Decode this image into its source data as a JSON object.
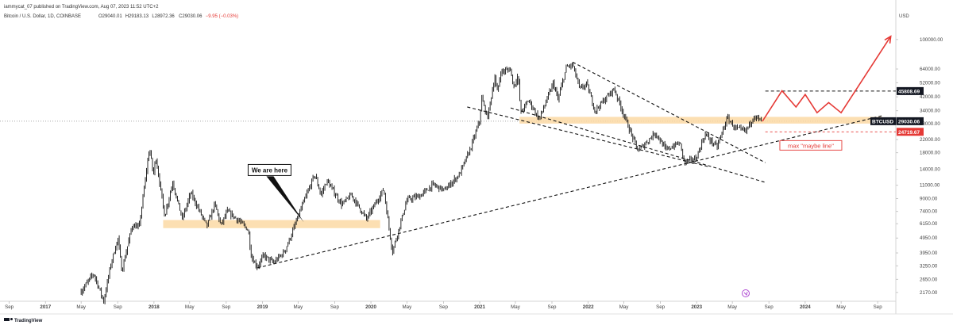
{
  "header": {
    "publish_line": "iammycat_07 published on TradingView.com, Aug 07, 2023 11:52 UTC+2",
    "symbol_line": "Bitcoin / U.S. Dollar, 1D, COINBASE",
    "ohlc": {
      "open_label": "O",
      "open": "29040.01",
      "high_label": "H",
      "high": "29183.13",
      "low_label": "L",
      "low": "28972.36",
      "close_label": "C",
      "close": "29030.06",
      "change": "−9.95 (−0.03%)"
    }
  },
  "footer": {
    "brand": "TradingView"
  },
  "colors": {
    "candle": "#111111",
    "zone": "#fbd9a4",
    "projection": "#e53935",
    "price_label_bg": "#131722",
    "support_label_bg": "#e53935",
    "axis_text": "#444444"
  },
  "chart_data": {
    "type": "candlestick-annotated",
    "currency": "USD",
    "scale": "log",
    "y_ticks": [
      100000,
      64000,
      52000,
      42000,
      34000,
      28000,
      22000,
      18000,
      14000,
      11000,
      9000,
      7400,
      6150,
      4950,
      3950,
      3250,
      2650,
      2170
    ],
    "y_tick_labels": [
      "100000.00",
      "64000.00",
      "52000.00",
      "42000.00",
      "34000.00",
      "28000.00",
      "22000.00",
      "18000.00",
      "14000.00",
      "11000.00",
      "9000.00",
      "7400.00",
      "6150.00",
      "4950.00",
      "3950.00",
      "3250.00",
      "2650.00",
      "2170.00"
    ],
    "ylim": [
      1900,
      130000
    ],
    "x_ticks": [
      {
        "date": "2016-09-01",
        "label": "Sep",
        "major": false
      },
      {
        "date": "2017-01-01",
        "label": "2017",
        "major": true
      },
      {
        "date": "2017-05-01",
        "label": "May",
        "major": false
      },
      {
        "date": "2017-09-01",
        "label": "Sep",
        "major": false
      },
      {
        "date": "2018-01-01",
        "label": "2018",
        "major": true
      },
      {
        "date": "2018-05-01",
        "label": "May",
        "major": false
      },
      {
        "date": "2018-09-01",
        "label": "Sep",
        "major": false
      },
      {
        "date": "2019-01-01",
        "label": "2019",
        "major": true
      },
      {
        "date": "2019-05-01",
        "label": "May",
        "major": false
      },
      {
        "date": "2019-09-01",
        "label": "Sep",
        "major": false
      },
      {
        "date": "2020-01-01",
        "label": "2020",
        "major": true
      },
      {
        "date": "2020-05-01",
        "label": "May",
        "major": false
      },
      {
        "date": "2020-09-01",
        "label": "Sep",
        "major": false
      },
      {
        "date": "2021-01-01",
        "label": "2021",
        "major": true
      },
      {
        "date": "2021-05-01",
        "label": "May",
        "major": false
      },
      {
        "date": "2021-09-01",
        "label": "Sep",
        "major": false
      },
      {
        "date": "2022-01-01",
        "label": "2022",
        "major": true
      },
      {
        "date": "2022-05-01",
        "label": "May",
        "major": false
      },
      {
        "date": "2022-09-01",
        "label": "Sep",
        "major": false
      },
      {
        "date": "2023-01-01",
        "label": "2023",
        "major": true
      },
      {
        "date": "2023-05-01",
        "label": "May",
        "major": false
      },
      {
        "date": "2023-09-01",
        "label": "Sep",
        "major": false
      },
      {
        "date": "2024-01-01",
        "label": "2024",
        "major": true
      },
      {
        "date": "2024-05-01",
        "label": "May",
        "major": false
      },
      {
        "date": "2024-09-01",
        "label": "Sep",
        "major": false
      }
    ],
    "xlim": [
      "2016-08-01",
      "2024-11-01"
    ],
    "price_path": [
      [
        "2017-05-01",
        2200
      ],
      [
        "2017-06-12",
        2900
      ],
      [
        "2017-07-16",
        1900
      ],
      [
        "2017-08-10",
        3400
      ],
      [
        "2017-09-02",
        4900
      ],
      [
        "2017-09-15",
        3000
      ],
      [
        "2017-10-20",
        6000
      ],
      [
        "2017-11-12",
        5800
      ],
      [
        "2017-12-17",
        19500
      ],
      [
        "2017-12-30",
        12800
      ],
      [
        "2018-01-07",
        17000
      ],
      [
        "2018-02-06",
        6900
      ],
      [
        "2018-03-05",
        11500
      ],
      [
        "2018-04-06",
        6600
      ],
      [
        "2018-05-05",
        9800
      ],
      [
        "2018-06-28",
        5900
      ],
      [
        "2018-07-25",
        8300
      ],
      [
        "2018-08-14",
        6000
      ],
      [
        "2018-09-05",
        7400
      ],
      [
        "2018-10-15",
        6400
      ],
      [
        "2018-11-14",
        5600
      ],
      [
        "2018-11-25",
        3700
      ],
      [
        "2018-12-15",
        3200
      ],
      [
        "2019-01-05",
        3800
      ],
      [
        "2019-02-07",
        3400
      ],
      [
        "2019-03-15",
        4000
      ],
      [
        "2019-04-05",
        5000
      ],
      [
        "2019-05-14",
        8000
      ],
      [
        "2019-06-26",
        13000
      ],
      [
        "2019-07-17",
        9500
      ],
      [
        "2019-08-06",
        11800
      ],
      [
        "2019-09-25",
        8200
      ],
      [
        "2019-10-27",
        9500
      ],
      [
        "2019-12-17",
        6600
      ],
      [
        "2020-02-13",
        10400
      ],
      [
        "2020-03-13",
        4000
      ],
      [
        "2020-05-01",
        8800
      ],
      [
        "2020-06-15",
        9400
      ],
      [
        "2020-07-28",
        11100
      ],
      [
        "2020-09-05",
        10200
      ],
      [
        "2020-10-25",
        13000
      ],
      [
        "2020-12-01",
        19200
      ],
      [
        "2020-12-31",
        29000
      ],
      [
        "2021-01-08",
        41000
      ],
      [
        "2021-01-27",
        30500
      ],
      [
        "2021-02-21",
        57000
      ],
      [
        "2021-02-28",
        44000
      ],
      [
        "2021-03-13",
        61000
      ],
      [
        "2021-04-14",
        64000
      ],
      [
        "2021-04-25",
        49000
      ],
      [
        "2021-05-10",
        58000
      ],
      [
        "2021-05-19",
        33000
      ],
      [
        "2021-06-15",
        40000
      ],
      [
        "2021-07-20",
        29800
      ],
      [
        "2021-09-06",
        52000
      ],
      [
        "2021-09-21",
        40000
      ],
      [
        "2021-10-20",
        66000
      ],
      [
        "2021-11-10",
        68000
      ],
      [
        "2021-12-04",
        47000
      ],
      [
        "2021-12-27",
        51000
      ],
      [
        "2022-01-24",
        34000
      ],
      [
        "2022-03-29",
        47500
      ],
      [
        "2022-05-12",
        28000
      ],
      [
        "2022-06-18",
        18500
      ],
      [
        "2022-08-15",
        24400
      ],
      [
        "2022-09-20",
        18800
      ],
      [
        "2022-11-05",
        21000
      ],
      [
        "2022-11-21",
        15500
      ],
      [
        "2022-12-30",
        16500
      ],
      [
        "2023-01-29",
        23800
      ],
      [
        "2023-03-10",
        19600
      ],
      [
        "2023-04-14",
        30500
      ],
      [
        "2023-05-12",
        26000
      ],
      [
        "2023-06-15",
        25000
      ],
      [
        "2023-07-13",
        31500
      ],
      [
        "2023-08-07",
        29030
      ]
    ],
    "last_price": 29030.06,
    "price_labels": [
      {
        "value": 45808.69,
        "text": "45808.69",
        "style": "resistance"
      },
      {
        "value": 29030.06,
        "text": "29030.06",
        "prefix": "BTCUSD",
        "style": "last"
      },
      {
        "value": 24719.67,
        "text": "24719.67",
        "style": "support"
      }
    ],
    "annotations": {
      "zones": [
        {
          "x": [
            "2018-02-01",
            "2020-02-01"
          ],
          "y": [
            5750,
            6500
          ]
        },
        {
          "x": [
            "2021-05-15",
            "2024-09-15"
          ],
          "y": [
            28000,
            31000
          ]
        }
      ],
      "trendlines": [
        {
          "points": [
            [
              "2018-12-15",
              3150
            ],
            [
              "2024-09-15",
              31500
            ]
          ],
          "style": "dashed"
        },
        {
          "points": [
            [
              "2020-11-20",
              36000
            ],
            [
              "2023-02-15",
              14500
            ]
          ],
          "style": "dashed"
        },
        {
          "points": [
            [
              "2021-04-15",
              35500
            ],
            [
              "2023-08-20",
              11500
            ]
          ],
          "style": "dashed"
        },
        {
          "points": [
            [
              "2021-11-10",
              71000
            ],
            [
              "2023-08-20",
              15500
            ]
          ],
          "style": "dashed"
        }
      ],
      "resistance_line": {
        "x": [
          "2023-08-20",
          "2024-11-01"
        ],
        "value": 45808.69
      },
      "support_line": {
        "x": [
          "2023-08-20",
          "2024-11-01"
        ],
        "value": 24719.67
      },
      "projection": [
        [
          "2023-08-10",
          29000
        ],
        [
          "2023-10-15",
          46000
        ],
        [
          "2023-12-01",
          36000
        ],
        [
          "2024-01-01",
          43500
        ],
        [
          "2024-02-10",
          33000
        ],
        [
          "2024-03-20",
          38500
        ],
        [
          "2024-05-01",
          33000
        ],
        [
          "2024-10-15",
          105000
        ]
      ],
      "callout": {
        "text": "We are here",
        "box_at": [
          "2019-01-25",
          13700
        ],
        "arrow_to": [
          "2019-05-20",
          6300
        ]
      },
      "support_note": {
        "text": "max \"maybe line\"",
        "at": [
          "2024-01-20",
          19900
        ]
      }
    }
  }
}
